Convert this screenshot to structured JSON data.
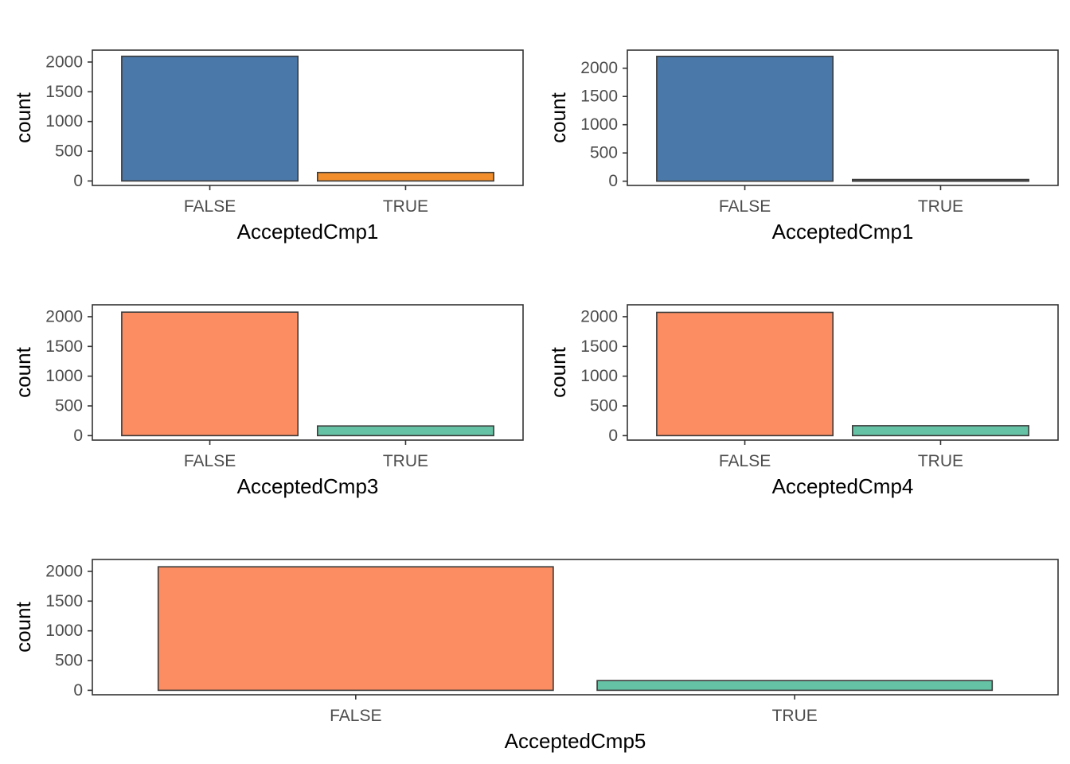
{
  "colors": {
    "panel_border": "#333333",
    "tick": "#333333",
    "bar_outline": "#3b3b3b",
    "background": "#ffffff"
  },
  "chart_data": [
    {
      "type": "bar",
      "categories": [
        "FALSE",
        "TRUE"
      ],
      "values": [
        2097,
        143
      ],
      "colors": [
        "#4A78A8",
        "#F28E2B"
      ],
      "xlabel": "AcceptedCmp1",
      "ylabel": "count",
      "yticks": [
        0,
        500,
        1000,
        1500,
        2000
      ],
      "ytick_labels": [
        "0",
        "500",
        "1000",
        "1500",
        "2000"
      ],
      "ylim": [
        -75,
        2200
      ],
      "grid": false
    },
    {
      "type": "bar",
      "categories": [
        "FALSE",
        "TRUE"
      ],
      "values": [
        2210,
        30
      ],
      "colors": [
        "#4A78A8",
        "#555555"
      ],
      "xlabel": "AcceptedCmp1",
      "ylabel": "count",
      "yticks": [
        0,
        500,
        1000,
        1500,
        2000
      ],
      "ytick_labels": [
        "0",
        "500",
        "1000",
        "1500",
        "2000"
      ],
      "ylim": [
        -75,
        2320
      ],
      "grid": false
    },
    {
      "type": "bar",
      "categories": [
        "FALSE",
        "TRUE"
      ],
      "values": [
        2077,
        163
      ],
      "colors": [
        "#FC8D62",
        "#66C2A5"
      ],
      "xlabel": "AcceptedCmp3",
      "ylabel": "count",
      "yticks": [
        0,
        500,
        1000,
        1500,
        2000
      ],
      "ytick_labels": [
        "0",
        "500",
        "1000",
        "1500",
        "2000"
      ],
      "ylim": [
        -75,
        2200
      ],
      "grid": false
    },
    {
      "type": "bar",
      "categories": [
        "FALSE",
        "TRUE"
      ],
      "values": [
        2073,
        167
      ],
      "colors": [
        "#FC8D62",
        "#66C2A5"
      ],
      "xlabel": "AcceptedCmp4",
      "ylabel": "count",
      "yticks": [
        0,
        500,
        1000,
        1500,
        2000
      ],
      "ytick_labels": [
        "0",
        "500",
        "1000",
        "1500",
        "2000"
      ],
      "ylim": [
        -75,
        2200
      ],
      "grid": false
    },
    {
      "type": "bar",
      "categories": [
        "FALSE",
        "TRUE"
      ],
      "values": [
        2077,
        163
      ],
      "colors": [
        "#FC8D62",
        "#66C2A5"
      ],
      "xlabel": "AcceptedCmp5",
      "ylabel": "count",
      "yticks": [
        0,
        500,
        1000,
        1500,
        2000
      ],
      "ytick_labels": [
        "0",
        "500",
        "1000",
        "1500",
        "2000"
      ],
      "ylim": [
        -75,
        2200
      ],
      "grid": false
    }
  ]
}
